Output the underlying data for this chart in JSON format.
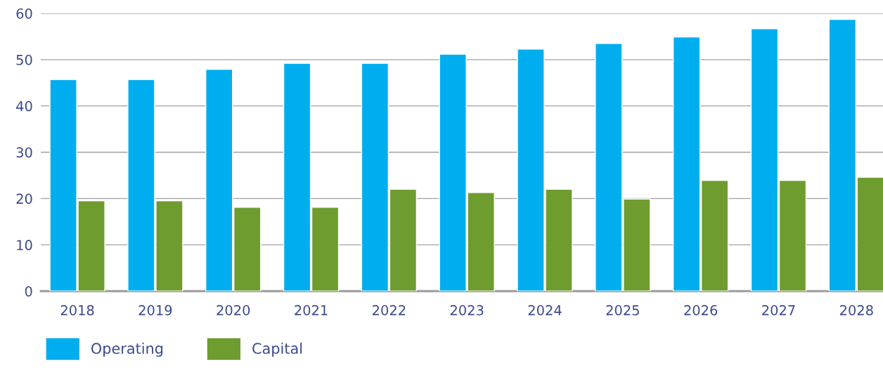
{
  "chart_data": {
    "type": "bar",
    "categories": [
      "2018",
      "2019",
      "2020",
      "2021",
      "2022",
      "2023",
      "2024",
      "2025",
      "2026",
      "2027",
      "2028"
    ],
    "series": [
      {
        "name": "Operating",
        "color": "#00aeef",
        "values": [
          45.7,
          45.7,
          47.9,
          49.2,
          49.2,
          51.2,
          52.3,
          53.5,
          54.9,
          56.7,
          58.7
        ]
      },
      {
        "name": "Capital",
        "color": "#6e9c2f",
        "values": [
          19.5,
          19.5,
          18.1,
          18.1,
          22.0,
          21.3,
          22.0,
          19.9,
          23.9,
          23.9,
          24.6
        ]
      }
    ],
    "ylim": [
      0,
      60
    ],
    "yticks": [
      0,
      10,
      20,
      30,
      40,
      50,
      60
    ],
    "grid": "y",
    "legend": "bottom left"
  }
}
